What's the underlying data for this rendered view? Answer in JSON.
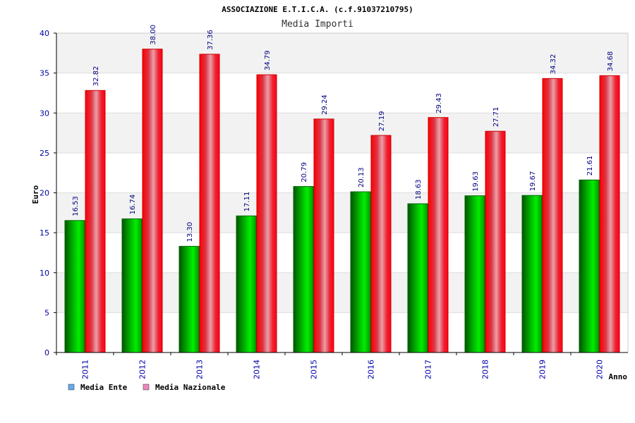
{
  "header": {
    "title": "ASSOCIAZIONE E.T.I.C.A. (c.f.91037210795)",
    "subtitle": "Media Importi"
  },
  "colors": {
    "series_ente": "#00aa00",
    "series_nazionale": "#ee1122",
    "legend_ente": "#66aaee",
    "legend_nazionale": "#ee88bb",
    "tick_labels": "#0000aa",
    "value_labels": "#000080"
  },
  "chart_data": {
    "type": "bar",
    "title": "ASSOCIAZIONE E.T.I.C.A. (c.f.91037210795)",
    "subtitle": "Media Importi",
    "xlabel": "Anno",
    "ylabel": "Euro",
    "ylim": [
      0,
      40
    ],
    "yticks": [
      "0",
      "5",
      "10",
      "15",
      "20",
      "25",
      "30",
      "35",
      "40"
    ],
    "categories": [
      "2011",
      "2012",
      "2013",
      "2014",
      "2015",
      "2016",
      "2017",
      "2018",
      "2019",
      "2020"
    ],
    "series": [
      {
        "name": "Media Ente",
        "values": [
          16.53,
          16.74,
          13.3,
          17.11,
          20.79,
          20.13,
          18.63,
          19.63,
          19.67,
          21.61
        ],
        "labels": [
          "16.53",
          "16.74",
          "13.30",
          "17.11",
          "20.79",
          "20.13",
          "18.63",
          "19.63",
          "19.67",
          "21.61"
        ]
      },
      {
        "name": "Media Nazionale",
        "values": [
          32.82,
          38.0,
          37.36,
          34.79,
          29.24,
          27.19,
          29.43,
          27.71,
          34.32,
          34.68
        ],
        "labels": [
          "32.82",
          "38.00",
          "37.36",
          "34.79",
          "29.24",
          "27.19",
          "29.43",
          "27.71",
          "34.32",
          "34.68"
        ]
      }
    ],
    "grid": true,
    "legend_position": "bottom-left"
  }
}
